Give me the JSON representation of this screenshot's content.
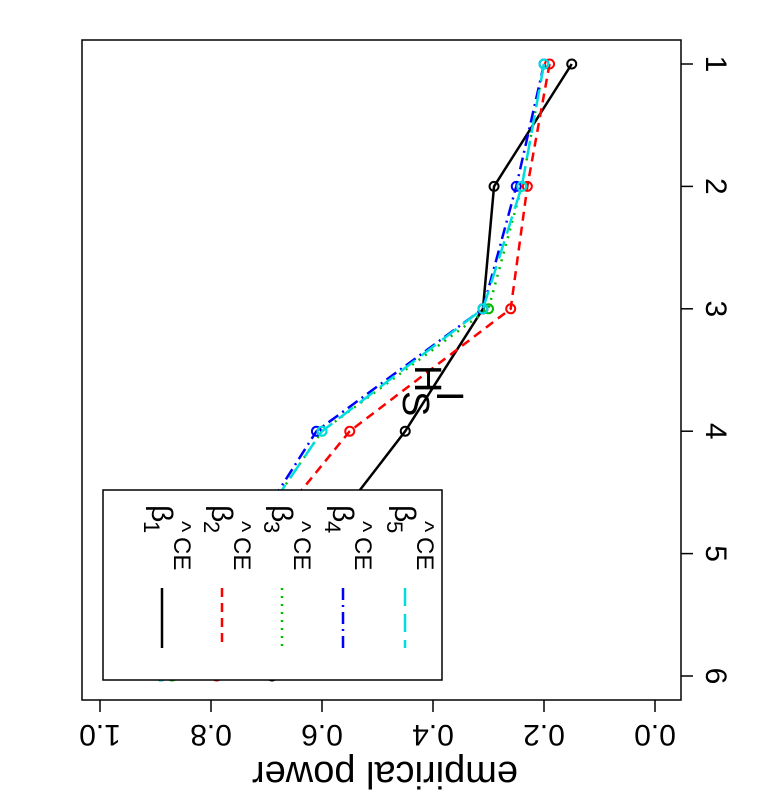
{
  "chart_data": {
    "type": "line",
    "title": "H_S^I",
    "title_main": "H",
    "title_sub": "S",
    "title_sup": "I",
    "xlabel": "",
    "ylabel": "empirical power",
    "orientation": "rotated-90-clockwise",
    "x": [
      1,
      2,
      3,
      4,
      5,
      6
    ],
    "xlim": [
      1,
      6
    ],
    "ylim": [
      0,
      1
    ],
    "x_ticks": [
      "1",
      "2",
      "3",
      "4",
      "5",
      "6"
    ],
    "y_ticks": [
      "0.0",
      "0.2",
      "0.4",
      "0.6",
      "0.8",
      "1.0"
    ],
    "grid": false,
    "legend": {
      "placement": "bottom-left",
      "hat": "^",
      "superscript": "CE",
      "symbol": "β"
    },
    "series": [
      {
        "name": "β1 ^CE",
        "sub": "1",
        "color": "#000000",
        "dash": "",
        "values": [
          0.15,
          0.29,
          0.31,
          0.45,
          0.62,
          0.69
        ]
      },
      {
        "name": "β2 ^CE",
        "sub": "2",
        "color": "#ff0000",
        "dash": "9,6",
        "values": [
          0.19,
          0.23,
          0.26,
          0.55,
          0.73,
          0.79
        ]
      },
      {
        "name": "β3 ^CE",
        "sub": "3",
        "color": "#00bb00",
        "dash": "2,6",
        "values": [
          0.2,
          0.24,
          0.3,
          0.6,
          0.75,
          0.87
        ]
      },
      {
        "name": "β4 ^CE",
        "sub": "4",
        "color": "#0000ff",
        "dash": "12,5,2,5",
        "values": [
          0.2,
          0.25,
          0.31,
          0.61,
          0.75,
          0.89
        ]
      },
      {
        "name": "β5 ^CE",
        "sub": "5",
        "color": "#00dddd",
        "dash": "18,8",
        "values": [
          0.2,
          0.24,
          0.31,
          0.6,
          0.75,
          0.89
        ]
      }
    ]
  }
}
